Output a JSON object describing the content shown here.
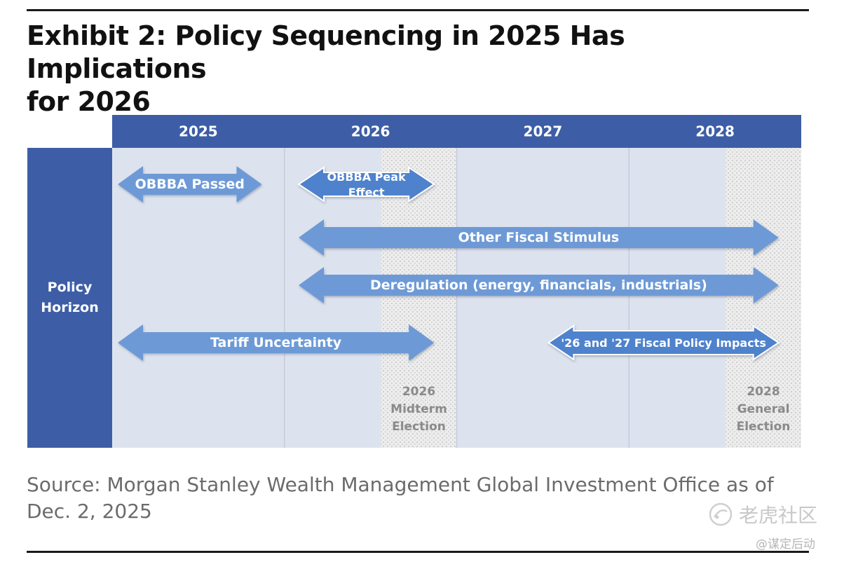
{
  "title": "Exhibit 2: Policy Sequencing in 2025 Has Implications for 2026",
  "title_lines": [
    "Exhibit 2: Policy Sequencing in 2025 Has Implications",
    "for 2026"
  ],
  "row_label": [
    "Policy",
    "Horizon"
  ],
  "years": [
    "2025",
    "2026",
    "2027",
    "2028"
  ],
  "arrows": [
    {
      "label": [
        "OBBBA Passed"
      ],
      "start": 2025.0,
      "end": 2025.95,
      "row": 1,
      "style": "flat"
    },
    {
      "label": [
        "OBBBA Peak",
        "Effect"
      ],
      "start": 2026.05,
      "end": 2026.95,
      "row": 1,
      "style": "raised"
    },
    {
      "label": [
        "Other Fiscal Stimulus"
      ],
      "start": 2026.05,
      "end": 2028.95,
      "row": 2,
      "style": "flat"
    },
    {
      "label": [
        "Deregulation (energy, financials, industrials)"
      ],
      "start": 2026.05,
      "end": 2028.95,
      "row": 3,
      "style": "flat"
    },
    {
      "label": [
        "Tariff Uncertainty"
      ],
      "start": 2025.0,
      "end": 2026.95,
      "row": 4,
      "style": "flat"
    },
    {
      "label": [
        "'26 and '27 Fiscal Policy Impacts"
      ],
      "start": 2027.5,
      "end": 2028.95,
      "row": 4,
      "style": "raised"
    }
  ],
  "events": [
    {
      "label": [
        "2026",
        "Midterm",
        "Election"
      ],
      "year": 2026
    },
    {
      "label": [
        "2028",
        "General",
        "Election"
      ],
      "year": 2028
    }
  ],
  "source_lines": [
    "Source: Morgan Stanley Wealth Management Global Investment Office as of",
    "Dec. 2, 2025"
  ],
  "watermark": {
    "brand": "老虎社区",
    "handle": "@谋定后动"
  },
  "colors": {
    "header": "#3d5ea6",
    "label_column": "#3d5ea6",
    "panel": "#dde3ee",
    "divider": "#c4cbda",
    "arrow_flat": "#6d9ad6",
    "arrow_raised": "#4f82cc",
    "arrow_text": "#ffffff",
    "event_text": "#8a8a8a"
  }
}
